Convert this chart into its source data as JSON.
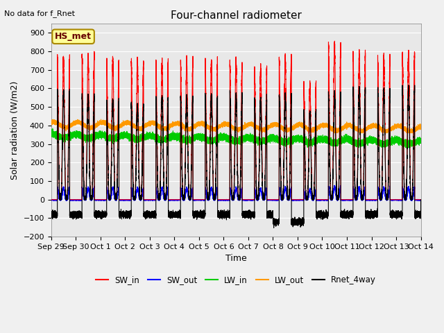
{
  "title": "Four-channel radiometer",
  "top_left_text": "No data for f_Rnet",
  "ylabel": "Solar radiation (W/m2)",
  "xlabel": "Time",
  "annotation_box": "HS_met",
  "ylim": [
    -200,
    950
  ],
  "yticks": [
    -200,
    -100,
    0,
    100,
    200,
    300,
    400,
    500,
    600,
    700,
    800,
    900
  ],
  "x_tick_labels": [
    "Sep 29",
    "Sep 30",
    "Oct 1",
    "Oct 2",
    "Oct 3",
    "Oct 4",
    "Oct 5",
    "Oct 6",
    "Oct 7",
    "Oct 8",
    "Oct 9",
    "Oct 10",
    "Oct 11",
    "Oct 12",
    "Oct 13",
    "Oct 14"
  ],
  "colors": {
    "SW_in": "#ff0000",
    "SW_out": "#0000ff",
    "LW_in": "#00cc00",
    "LW_out": "#ff9900",
    "Rnet_4way": "#000000"
  },
  "plot_bg_color": "#e8e8e8",
  "fig_bg_color": "#f0f0f0",
  "annotation_box_color": "#ffff99",
  "annotation_box_edge": "#aa8800",
  "n_days": 15,
  "peaks_sw": [
    760,
    780,
    750,
    740,
    730,
    740,
    740,
    730,
    700,
    760,
    610,
    840,
    780,
    760,
    780
  ],
  "peaks_rnet": [
    580,
    560,
    530,
    510,
    545,
    550,
    555,
    565,
    540,
    560,
    470,
    570,
    590,
    590,
    600
  ]
}
